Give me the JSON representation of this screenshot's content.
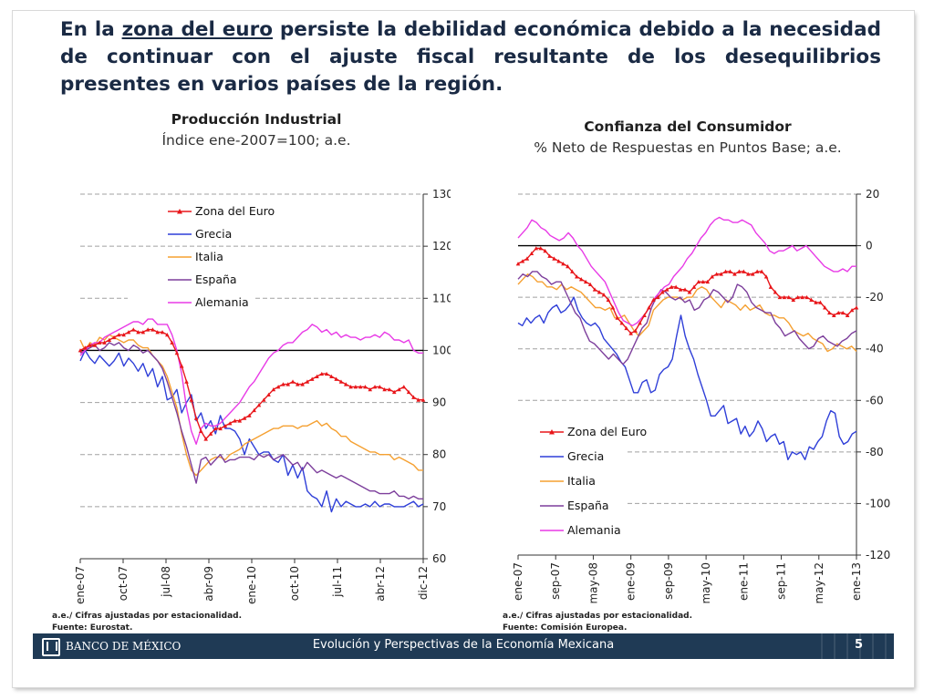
{
  "headline": {
    "part1": "En la ",
    "underlined": "zona del euro",
    "part2": " persiste la debilidad económica debido a la necesidad de continuar con el ajuste fiscal resultante de los desequilibrios presentes en varios países de la región."
  },
  "footer": {
    "logo_text": "BANCO DE MÉXICO",
    "title": "Evolución y Perspectivas de la Economía Mexicana",
    "page": "5",
    "bg_color": "#1f3a55"
  },
  "colors": {
    "zona_euro": "#e8161a",
    "grecia": "#2f3fd8",
    "italia": "#f5a031",
    "espana": "#7d3f9c",
    "alemania": "#e83ae6"
  },
  "chart_data": [
    {
      "type": "line",
      "title": "Producción Industrial",
      "subtitle": "Índice ene-2007=100; a.e.",
      "y_axis_side": "right",
      "ylim": [
        60,
        130
      ],
      "yticks": [
        60,
        70,
        80,
        90,
        100,
        110,
        120,
        130
      ],
      "reference_line": 100,
      "x_start": "2007-01",
      "x_end": "2012-12",
      "xticks": [
        "ene-07",
        "oct-07",
        "jul-08",
        "abr-09",
        "ene-10",
        "oct-10",
        "jul-11",
        "abr-12",
        "dic-12"
      ],
      "grid": "dashed-horizontal",
      "legend": "top-left",
      "note": "a.e./ Cifras ajustadas por estacionalidad.",
      "source": "Fuente: Eurostat.",
      "series": [
        {
          "name": "Zona del Euro",
          "color_key": "zona_euro",
          "marker": "triangle",
          "values": [
            100.0,
            100.5,
            101.0,
            101.0,
            101.5,
            101.5,
            102.0,
            102.5,
            103.0,
            103.0,
            103.5,
            104.0,
            103.5,
            103.5,
            104.0,
            104.0,
            103.5,
            103.5,
            103.0,
            101.5,
            99.5,
            97.0,
            94.0,
            90.5,
            87.0,
            84.5,
            83.0,
            84.0,
            85.0,
            85.0,
            85.5,
            86.0,
            86.5,
            86.5,
            87.0,
            87.5,
            88.5,
            89.5,
            90.5,
            91.5,
            92.5,
            93.0,
            93.5,
            93.5,
            94.0,
            93.5,
            93.5,
            94.0,
            94.5,
            95.0,
            95.5,
            95.5,
            95.0,
            94.5,
            94.0,
            93.5,
            93.0,
            93.0,
            93.0,
            93.0,
            92.5,
            93.0,
            93.0,
            92.5,
            92.5,
            92.0,
            92.5,
            93.0,
            92.0,
            91.0,
            90.5,
            90.5
          ]
        },
        {
          "name": "Grecia",
          "color_key": "grecia",
          "values": [
            98.0,
            100.0,
            98.5,
            97.5,
            99.0,
            98.0,
            97.0,
            98.0,
            99.5,
            97.0,
            98.5,
            97.5,
            96.0,
            97.5,
            95.0,
            96.5,
            93.0,
            95.0,
            90.5,
            91.0,
            92.5,
            88.0,
            90.0,
            91.5,
            86.5,
            88.0,
            85.0,
            86.5,
            84.0,
            87.5,
            85.0,
            85.0,
            84.5,
            83.0,
            80.0,
            83.0,
            81.5,
            80.0,
            80.5,
            80.5,
            79.0,
            78.5,
            80.0,
            76.0,
            78.0,
            75.5,
            77.5,
            73.0,
            72.0,
            71.5,
            70.0,
            73.0,
            69.0,
            71.5,
            70.0,
            71.0,
            70.5,
            70.0,
            70.0,
            70.5,
            70.0,
            71.0,
            70.0,
            70.5,
            70.5,
            70.0,
            70.0,
            70.0,
            70.5,
            71.0,
            70.0,
            70.5
          ]
        },
        {
          "name": "Italia",
          "color_key": "italia",
          "values": [
            102.0,
            100.0,
            101.5,
            101.0,
            102.5,
            102.0,
            103.0,
            102.5,
            102.0,
            101.5,
            102.0,
            102.0,
            101.0,
            100.5,
            100.5,
            99.0,
            98.0,
            97.0,
            95.0,
            92.0,
            89.0,
            84.0,
            80.0,
            77.0,
            76.0,
            77.0,
            78.0,
            79.0,
            79.5,
            79.5,
            79.0,
            80.0,
            80.5,
            81.0,
            82.0,
            82.5,
            83.0,
            83.5,
            84.0,
            84.5,
            85.0,
            85.0,
            85.5,
            85.5,
            85.5,
            85.0,
            85.5,
            85.5,
            86.0,
            86.5,
            85.5,
            86.0,
            85.0,
            84.5,
            83.5,
            83.5,
            82.5,
            82.0,
            81.5,
            81.0,
            80.5,
            80.5,
            80.0,
            80.0,
            80.0,
            79.0,
            79.5,
            79.0,
            78.5,
            78.0,
            77.0,
            77.0
          ]
        },
        {
          "name": "España",
          "color_key": "espana",
          "values": [
            99.5,
            100.0,
            100.5,
            101.0,
            100.0,
            100.5,
            101.5,
            101.0,
            101.5,
            100.5,
            100.0,
            101.0,
            100.5,
            99.5,
            100.0,
            99.0,
            98.0,
            96.5,
            94.0,
            91.0,
            88.0,
            84.5,
            81.5,
            78.0,
            74.5,
            79.0,
            79.5,
            78.0,
            79.0,
            80.0,
            78.5,
            79.0,
            79.0,
            79.5,
            79.5,
            79.5,
            79.0,
            80.0,
            79.5,
            80.0,
            79.0,
            79.5,
            80.0,
            79.0,
            78.0,
            78.5,
            77.0,
            78.5,
            77.5,
            76.5,
            77.0,
            76.5,
            76.0,
            75.5,
            76.0,
            75.5,
            75.0,
            74.5,
            74.0,
            73.5,
            73.0,
            73.0,
            72.5,
            72.5,
            72.5,
            73.0,
            72.0,
            72.0,
            71.5,
            72.0,
            71.5,
            71.5
          ]
        },
        {
          "name": "Alemania",
          "color_key": "alemania",
          "values": [
            99.0,
            100.0,
            101.0,
            101.5,
            101.5,
            102.5,
            103.0,
            103.5,
            104.0,
            104.5,
            105.0,
            105.5,
            105.5,
            105.0,
            106.0,
            106.0,
            105.0,
            105.0,
            105.0,
            103.0,
            100.0,
            95.5,
            89.0,
            84.5,
            82.0,
            85.0,
            86.0,
            85.5,
            85.5,
            86.0,
            87.0,
            88.0,
            89.0,
            90.0,
            91.5,
            93.0,
            94.0,
            95.5,
            97.0,
            98.5,
            99.5,
            100.0,
            101.0,
            101.5,
            101.5,
            102.5,
            103.5,
            104.0,
            105.0,
            104.5,
            103.5,
            104.0,
            103.0,
            103.5,
            102.5,
            103.0,
            102.5,
            102.5,
            102.0,
            102.5,
            102.5,
            103.0,
            102.5,
            103.5,
            103.0,
            102.0,
            102.0,
            101.5,
            102.0,
            100.0,
            99.5,
            99.5
          ]
        }
      ]
    },
    {
      "type": "line",
      "title": "Confianza del Consumidor",
      "subtitle": "% Neto de Respuestas en Puntos Base; a.e.",
      "y_axis_side": "right",
      "ylim": [
        -120,
        20
      ],
      "yticks": [
        -120,
        -100,
        -80,
        -60,
        -40,
        -20,
        0,
        20
      ],
      "reference_line": 0,
      "x_start": "2007-01",
      "x_end": "2013-01",
      "xticks": [
        "ene-07",
        "sep-07",
        "may-08",
        "ene-09",
        "sep-09",
        "may-10",
        "ene-11",
        "sep-11",
        "may-12",
        "ene-13"
      ],
      "grid": "dashed-horizontal",
      "legend": "bottom-left",
      "note": "a.e./ Cifras ajustadas por estacionalidad.",
      "source": "Fuente: Comisión Europea.",
      "series": [
        {
          "name": "Zona del Euro",
          "color_key": "zona_euro",
          "marker": "triangle",
          "values": [
            -7,
            -6,
            -5,
            -3,
            -1,
            -1,
            -2,
            -4,
            -5,
            -6,
            -7,
            -8,
            -10,
            -12,
            -13,
            -14,
            -15,
            -17,
            -18,
            -19,
            -21,
            -24,
            -28,
            -30,
            -32,
            -34,
            -33,
            -30,
            -27,
            -24,
            -21,
            -20,
            -18,
            -17,
            -16,
            -16,
            -17,
            -17,
            -18,
            -16,
            -14,
            -14,
            -14,
            -12,
            -11,
            -11,
            -10,
            -10,
            -11,
            -10,
            -10,
            -11,
            -11,
            -10,
            -10,
            -12,
            -16,
            -18,
            -20,
            -20,
            -20,
            -21,
            -20,
            -20,
            -20,
            -21,
            -22,
            -22,
            -24,
            -26,
            -27,
            -26,
            -26,
            -27,
            -25,
            -24
          ]
        },
        {
          "name": "Grecia",
          "color_key": "grecia",
          "values": [
            -30,
            -31,
            -28,
            -30,
            -28,
            -27,
            -30,
            -26,
            -24,
            -23,
            -26,
            -25,
            -23,
            -20,
            -25,
            -28,
            -30,
            -31,
            -30,
            -32,
            -36,
            -38,
            -40,
            -42,
            -45,
            -47,
            -52,
            -57,
            -57,
            -53,
            -52,
            -57,
            -56,
            -50,
            -48,
            -47,
            -44,
            -35,
            -27,
            -35,
            -40,
            -44,
            -50,
            -55,
            -60,
            -66,
            -66,
            -64,
            -62,
            -69,
            -68,
            -67,
            -73,
            -70,
            -74,
            -72,
            -68,
            -71,
            -76,
            -74,
            -73,
            -77,
            -76,
            -83,
            -80,
            -81,
            -80,
            -83,
            -78,
            -79,
            -76,
            -74,
            -68,
            -64,
            -65,
            -74,
            -77,
            -76,
            -73,
            -72
          ]
        },
        {
          "name": "Italia",
          "color_key": "italia",
          "values": [
            -15,
            -13,
            -11,
            -12,
            -14,
            -14,
            -16,
            -16,
            -17,
            -15,
            -17,
            -16,
            -17,
            -18,
            -20,
            -22,
            -24,
            -24,
            -25,
            -24,
            -28,
            -28,
            -27,
            -30,
            -33,
            -35,
            -33,
            -31,
            -25,
            -23,
            -21,
            -20,
            -20,
            -20,
            -21,
            -20,
            -20,
            -17,
            -16,
            -17,
            -20,
            -22,
            -24,
            -21,
            -22,
            -23,
            -25,
            -23,
            -25,
            -24,
            -23,
            -26,
            -27,
            -27,
            -28,
            -28,
            -30,
            -33,
            -34,
            -35,
            -34,
            -36,
            -37,
            -38,
            -41,
            -40,
            -38,
            -39,
            -40,
            -39,
            -41
          ]
        },
        {
          "name": "España",
          "color_key": "espana",
          "values": [
            -13,
            -11,
            -12,
            -10,
            -10,
            -12,
            -13,
            -15,
            -14,
            -14,
            -18,
            -22,
            -26,
            -28,
            -33,
            -37,
            -38,
            -40,
            -42,
            -44,
            -42,
            -44,
            -46,
            -44,
            -40,
            -36,
            -32,
            -30,
            -24,
            -20,
            -17,
            -18,
            -20,
            -21,
            -20,
            -22,
            -21,
            -25,
            -24,
            -21,
            -20,
            -17,
            -18,
            -20,
            -22,
            -20,
            -15,
            -16,
            -18,
            -22,
            -24,
            -25,
            -26,
            -26,
            -30,
            -32,
            -35,
            -34,
            -33,
            -36,
            -38,
            -40,
            -39,
            -36,
            -35,
            -37,
            -38,
            -39,
            -37,
            -36,
            -34,
            -33
          ]
        },
        {
          "name": "Alemania",
          "color_key": "alemania",
          "values": [
            3,
            5,
            7,
            10,
            9,
            7,
            6,
            4,
            3,
            2,
            3,
            5,
            3,
            0,
            -2,
            -5,
            -8,
            -10,
            -12,
            -14,
            -18,
            -22,
            -26,
            -29,
            -30,
            -31,
            -30,
            -28,
            -26,
            -23,
            -20,
            -18,
            -16,
            -15,
            -12,
            -10,
            -8,
            -5,
            -3,
            0,
            3,
            5,
            8,
            10,
            11,
            10,
            10,
            9,
            9,
            10,
            9,
            8,
            5,
            3,
            1,
            -2,
            -3,
            -2,
            -2,
            -1,
            0,
            -2,
            -1,
            0,
            -2,
            -4,
            -6,
            -8,
            -9,
            -10,
            -10,
            -9,
            -10,
            -8,
            -8
          ]
        }
      ]
    }
  ]
}
